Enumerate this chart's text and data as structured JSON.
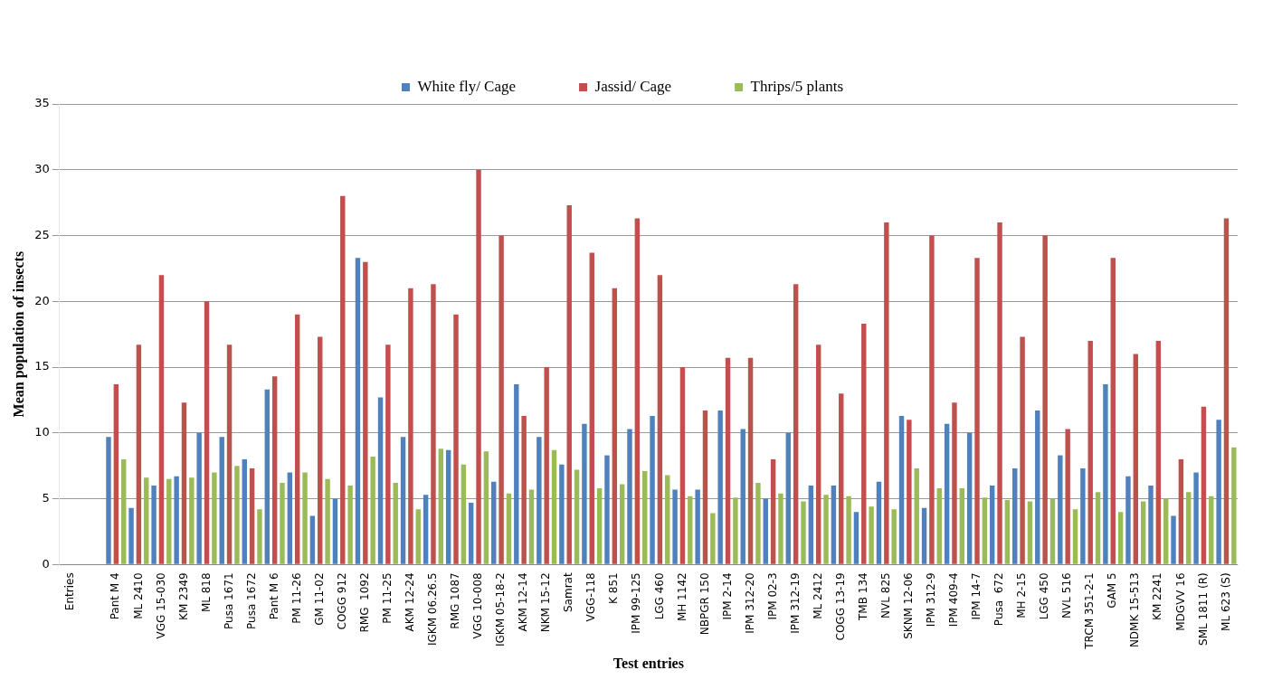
{
  "chart_data": {
    "type": "bar",
    "xlabel": "Test entries",
    "ylabel": "Mean population of insects",
    "categories": [
      "Entries",
      null,
      "Pant M 4",
      "ML 2410",
      "VGG 15-030",
      "KM 2349",
      "ML 818",
      "Pusa 1671",
      "Pusa 1672",
      "Pant M 6",
      "PM 11-26",
      "GM 11-02",
      "COGG 912",
      "RMG  1092",
      "PM 11-25",
      "AKM 12-24",
      "IGKM 06.26.5",
      "RMG 1087",
      "VGG 10-008",
      "IGKM 05-18-2",
      "AKM 12-14",
      "NKM 15-12",
      "Samrat",
      "VGG-118",
      "K 851",
      "IPM 99-125",
      "LGG 460",
      "MH 1142",
      "NBPGR 150",
      "IPM 2-14",
      "IPM 312-20",
      "IPM 02-3",
      "IPM 312-19",
      "ML 2412",
      "COGG 13-19",
      "TMB 134",
      "NVL 825",
      "SKNM 12-06",
      "IPM 312-9",
      "IPM 409-4",
      "IPM 14-7",
      "Pusa  672",
      "MH 2-15",
      "LGG 450",
      "NVL 516",
      "TRCM 351-2-1",
      "GAM 5",
      "NDMK 15-513",
      "KM 2241",
      "MDGVV 16",
      "SML 1811 (R)",
      "ML 623 (S)"
    ],
    "series": [
      {
        "name": "White fly/ Cage",
        "color": "#4f81bd",
        "values": [
          null,
          null,
          9.7,
          4.3,
          6.0,
          6.7,
          10.0,
          9.7,
          8.0,
          13.3,
          7.0,
          3.7,
          5.0,
          23.3,
          12.7,
          9.7,
          5.3,
          8.7,
          4.7,
          6.3,
          13.7,
          9.7,
          7.6,
          10.7,
          8.3,
          10.3,
          11.3,
          5.7,
          5.7,
          11.7,
          10.3,
          5.0,
          10.0,
          6.0,
          6.0,
          4.0,
          6.3,
          11.3,
          4.3,
          10.7,
          10.0,
          6.0,
          7.3,
          11.7,
          8.3,
          7.3,
          13.7,
          6.7,
          6.0,
          3.7,
          7.0,
          11.0
        ]
      },
      {
        "name": "Jassid/ Cage",
        "color": "#c0504d",
        "values": [
          null,
          null,
          13.7,
          16.7,
          22.0,
          12.3,
          20.0,
          16.7,
          7.3,
          14.3,
          19.0,
          17.3,
          28.0,
          23.0,
          16.7,
          21.0,
          21.3,
          19.0,
          30.0,
          25.0,
          11.3,
          15.0,
          27.3,
          23.7,
          21.0,
          26.3,
          22.0,
          15.0,
          11.7,
          15.7,
          15.7,
          8.0,
          21.3,
          16.7,
          13.0,
          18.3,
          26.0,
          11.0,
          25.0,
          12.3,
          23.3,
          26.0,
          17.3,
          25.0,
          10.3,
          17.0,
          23.3,
          16.0,
          17.0,
          8.0,
          12.0,
          26.3
        ]
      },
      {
        "name": "Thrips/5 plants",
        "color": "#9bbb59",
        "values": [
          null,
          null,
          8.0,
          6.6,
          6.5,
          6.6,
          7.0,
          7.5,
          4.2,
          6.2,
          7.0,
          6.5,
          6.0,
          8.2,
          6.2,
          4.2,
          8.8,
          7.6,
          8.6,
          5.4,
          5.7,
          8.7,
          7.2,
          5.8,
          6.1,
          7.1,
          6.8,
          5.2,
          3.9,
          5.1,
          6.2,
          5.4,
          4.8,
          5.3,
          5.2,
          4.4,
          4.2,
          7.3,
          5.8,
          5.8,
          5.1,
          4.9,
          4.8,
          5.0,
          4.2,
          5.5,
          4.0,
          4.8,
          5.0,
          5.5,
          5.2,
          8.9
        ]
      }
    ],
    "ylim": [
      0,
      35
    ],
    "yticks": [
      0,
      5,
      10,
      15,
      20,
      25,
      30,
      35
    ],
    "grid": "y",
    "legend": "top"
  }
}
